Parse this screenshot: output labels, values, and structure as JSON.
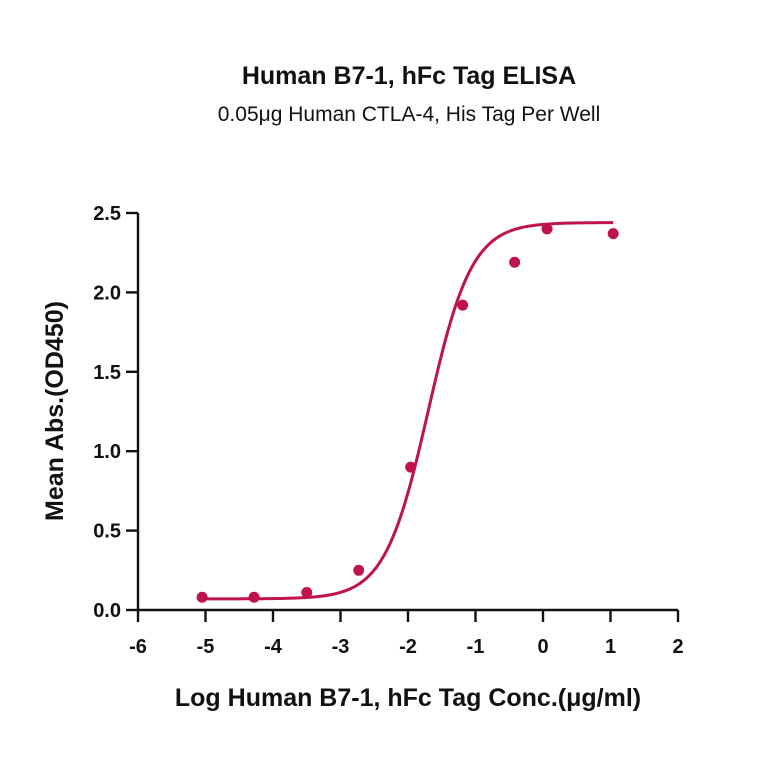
{
  "chart_data": {
    "type": "scatter",
    "title": "Human B7-1, hFc Tag ELISA",
    "subtitle": "0.05μg Human CTLA-4, His Tag Per Well",
    "xlabel": "Log Human B7-1, hFc Tag Conc.(μg/ml)",
    "ylabel": "Mean Abs.(OD450)",
    "xlim": [
      -6,
      2
    ],
    "ylim": [
      0,
      2.5
    ],
    "xticks": [
      -6,
      -5,
      -4,
      -3,
      -2,
      -1,
      0,
      1,
      2
    ],
    "xtick_labels": [
      "-6",
      "-5",
      "-4",
      "-3",
      "-2",
      "-1",
      "0",
      "1",
      "2"
    ],
    "yticks": [
      0,
      0.5,
      1,
      1.5,
      2,
      2.5
    ],
    "ytick_labels": [
      "0.0",
      "0.5",
      "1.0",
      "1.5",
      "2.0",
      "2.5"
    ],
    "grid": false,
    "legend": "none",
    "color": "#c0134a",
    "points": {
      "x": [
        -5.05,
        -4.28,
        -3.5,
        -2.73,
        -1.96,
        -1.19,
        -0.42,
        0.06,
        1.04
      ],
      "y": [
        0.08,
        0.08,
        0.11,
        0.25,
        0.9,
        1.92,
        2.19,
        2.4,
        2.37
      ]
    },
    "fit": {
      "model": "4PL",
      "bottom": 0.07,
      "top": 2.44,
      "logEC50": -1.7,
      "hill": 1.35,
      "x_range": [
        -5.05,
        1.04
      ]
    }
  }
}
